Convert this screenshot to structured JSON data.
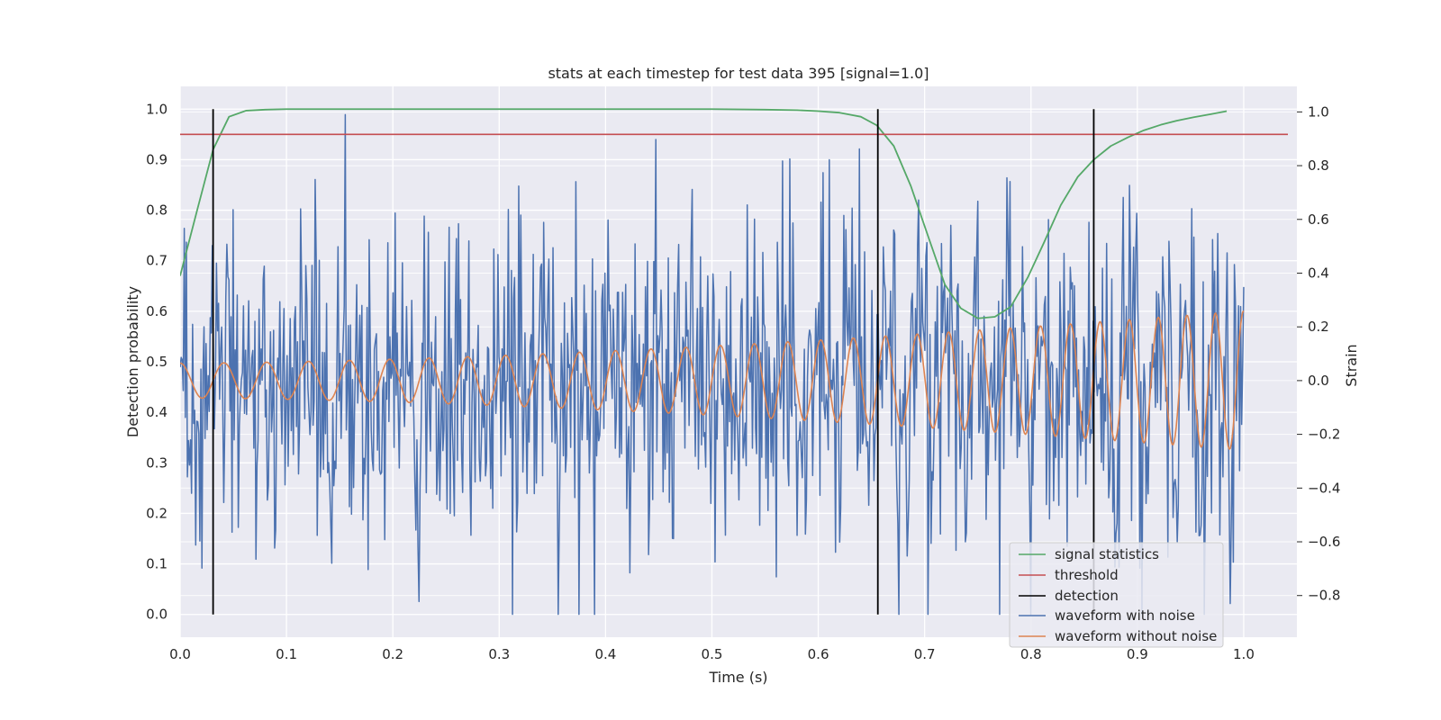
{
  "chart_data": {
    "type": "line",
    "title": "stats at each timestep for test data 395 [signal=1.0]",
    "xlabel": "Time (s)",
    "ylabel": "Detection probability",
    "ylabel_right": "Strain",
    "xlim": [
      0.0,
      1.05
    ],
    "ylim": [
      -0.045,
      1.045
    ],
    "ylim_right": [
      -0.955,
      1.095
    ],
    "xticks": [
      "0.0",
      "0.1",
      "0.2",
      "0.3",
      "0.4",
      "0.5",
      "0.6",
      "0.7",
      "0.8",
      "0.9",
      "1.0"
    ],
    "yticks": [
      "0.0",
      "0.1",
      "0.2",
      "0.3",
      "0.4",
      "0.5",
      "0.6",
      "0.7",
      "0.8",
      "0.9",
      "1.0"
    ],
    "yticks_right": [
      "−0.8",
      "−0.6",
      "−0.4",
      "−0.2",
      "0.0",
      "0.2",
      "0.4",
      "0.6",
      "0.8",
      "1.0"
    ],
    "grid": true,
    "legend_position": "lower-right",
    "signal_statistics": {
      "name": "signal statistics",
      "color": "#55a868",
      "x": [
        0.0,
        0.016,
        0.031,
        0.046,
        0.062,
        0.08,
        0.1,
        0.2,
        0.3,
        0.4,
        0.5,
        0.55,
        0.58,
        0.6,
        0.62,
        0.64,
        0.655,
        0.671,
        0.687,
        0.703,
        0.719,
        0.734,
        0.75,
        0.766,
        0.781,
        0.797,
        0.812,
        0.828,
        0.844,
        0.859,
        0.875,
        0.891,
        0.906,
        0.922,
        0.937,
        0.953,
        0.969,
        0.984
      ],
      "y": [
        0.67,
        0.8,
        0.92,
        0.985,
        0.997,
        0.999,
        1.0,
        1.0,
        1.0,
        1.0,
        1.0,
        0.999,
        0.998,
        0.996,
        0.993,
        0.985,
        0.968,
        0.927,
        0.848,
        0.75,
        0.653,
        0.606,
        0.586,
        0.589,
        0.609,
        0.667,
        0.735,
        0.81,
        0.866,
        0.9,
        0.927,
        0.944,
        0.958,
        0.969,
        0.977,
        0.984,
        0.99,
        0.996
      ]
    },
    "threshold": {
      "name": "threshold",
      "color": "#c44e52",
      "value": 0.95
    },
    "detection": {
      "name": "detection",
      "color": "#000000",
      "x": [
        0.031,
        0.656,
        0.859
      ],
      "y_range": [
        0.0,
        1.0
      ]
    },
    "waveform_with_noise": {
      "name": "waveform with noise",
      "color": "#4c72b0",
      "axis": "right",
      "x_range": [
        0.0,
        1.0
      ],
      "samples": 1024,
      "amplitude_std": 0.3
    },
    "waveform_without_noise": {
      "name": "waveform without noise",
      "color": "#dd8452",
      "axis": "right",
      "x_range": [
        0.0,
        1.0
      ],
      "amplitude_start": 0.065,
      "amplitude_end": 0.26,
      "frequency_start_hz": 24,
      "frequency_end_hz": 38
    }
  }
}
